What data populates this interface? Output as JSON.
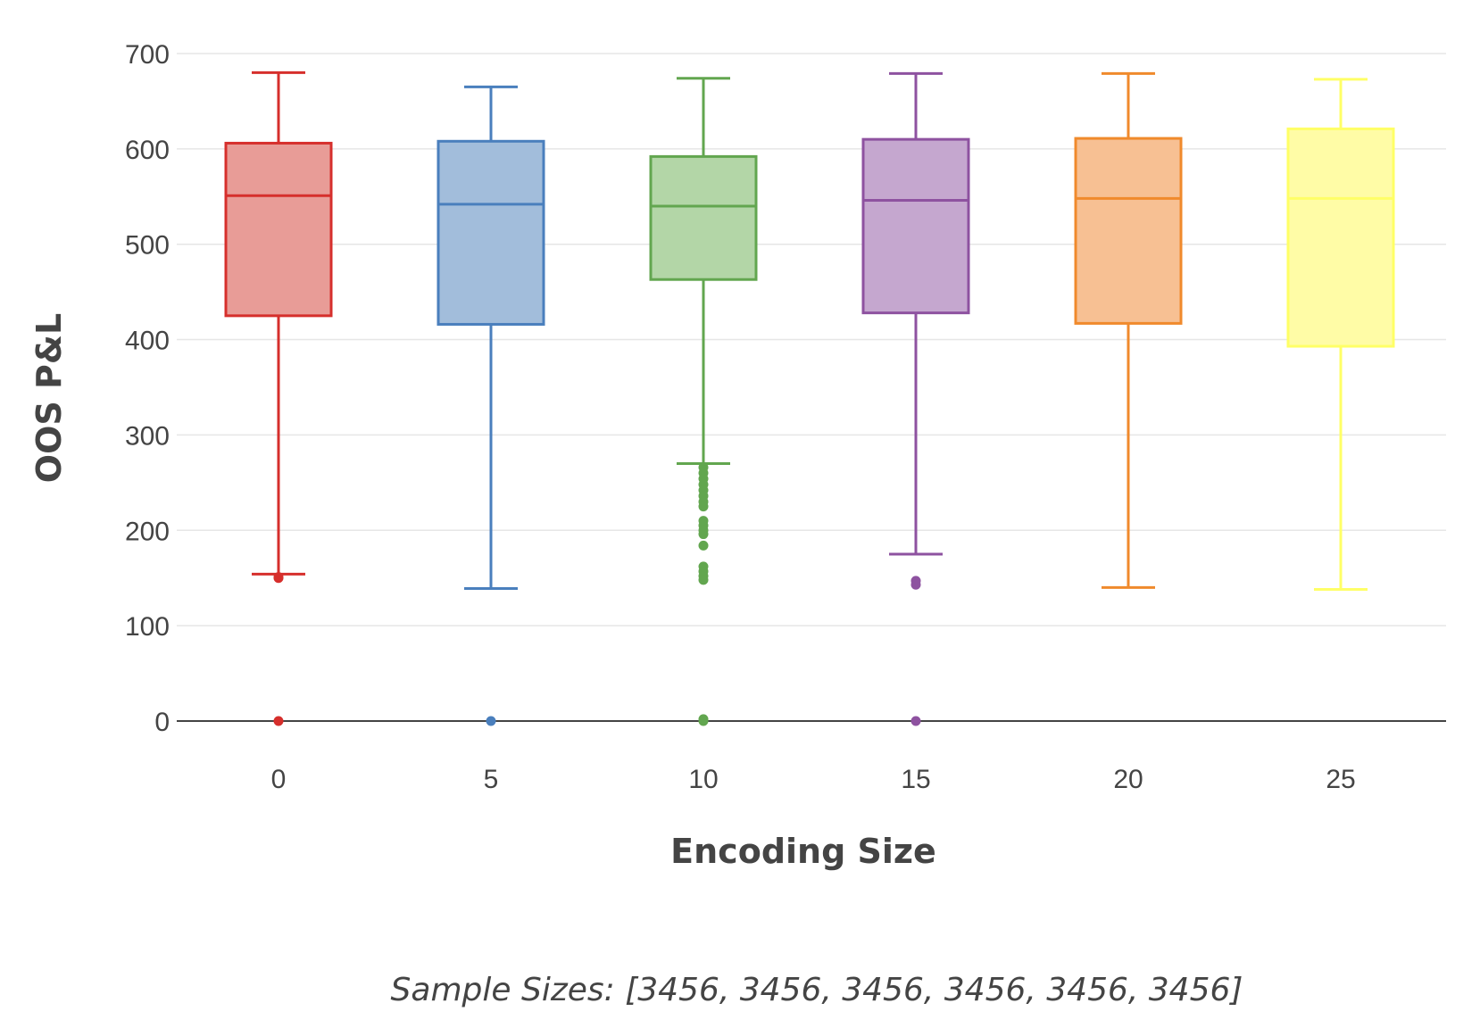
{
  "chart_data": {
    "type": "box",
    "xlabel": "Encoding Size",
    "ylabel": "OOS P&L",
    "caption": "Sample Sizes: [3456, 3456, 3456, 3456, 3456, 3456]",
    "ylim": [
      -75,
      705
    ],
    "yticks": [
      0,
      100,
      200,
      300,
      400,
      500,
      600,
      700
    ],
    "grid": true,
    "legend": "none",
    "categories": [
      "0",
      "5",
      "10",
      "15",
      "20",
      "25"
    ],
    "series": [
      {
        "color": "#d62f2c",
        "fill": "#e89c97",
        "lower_whisker": 154,
        "q1": 425,
        "median": 551,
        "q3": 606,
        "upper_whisker": 680,
        "outliers": [
          150,
          151,
          0
        ]
      },
      {
        "color": "#4a7fbd",
        "fill": "#a2bddb",
        "lower_whisker": 139,
        "q1": 416,
        "median": 542,
        "q3": 608,
        "upper_whisker": 665,
        "outliers": [
          0
        ]
      },
      {
        "color": "#62a64f",
        "fill": "#b3d6a7",
        "lower_whisker": 270,
        "q1": 463,
        "median": 540,
        "q3": 592,
        "upper_whisker": 674,
        "outliers": [
          266,
          260,
          254,
          248,
          242,
          236,
          230,
          225,
          210,
          205,
          200,
          196,
          184,
          162,
          157,
          152,
          148,
          2,
          0
        ]
      },
      {
        "color": "#8e52a0",
        "fill": "#c5a7cf",
        "lower_whisker": 175,
        "q1": 428,
        "median": 546,
        "q3": 610,
        "upper_whisker": 679,
        "outliers": [
          147,
          143,
          0
        ]
      },
      {
        "color": "#f08a2c",
        "fill": "#f7c093",
        "lower_whisker": 140,
        "q1": 417,
        "median": 548,
        "q3": 611,
        "upper_whisker": 679,
        "outliers": []
      },
      {
        "color": "#ffff66",
        "fill": "#fffca6",
        "lower_whisker": 138,
        "q1": 393,
        "median": 548,
        "q3": 621,
        "upper_whisker": 673,
        "outliers": []
      }
    ]
  }
}
